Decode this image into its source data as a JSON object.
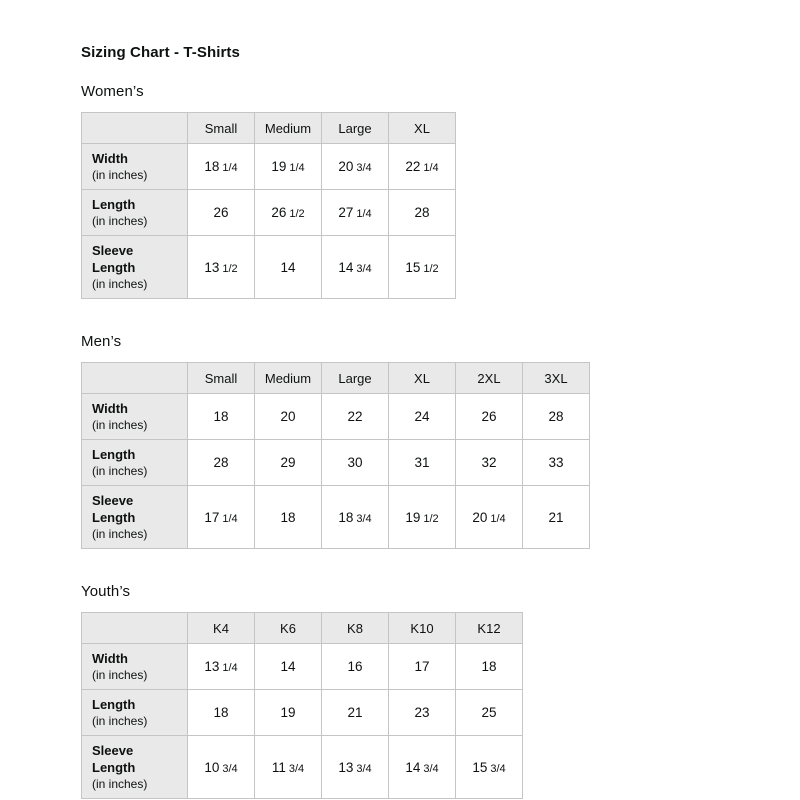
{
  "page": {
    "title": "Sizing Chart - T-Shirts"
  },
  "colors": {
    "background": "#ffffff",
    "header_bg": "#e9e9e9",
    "border": "#c5c5c5",
    "text": "#0f1111"
  },
  "chart_data": [
    {
      "type": "table",
      "section_title": "Women’s",
      "column_headers": [
        "Small",
        "Medium",
        "Large",
        "XL"
      ],
      "rows": [
        {
          "label": "Width",
          "note": "(in inches)",
          "values": [
            "18 1/4",
            "19 1/4",
            "20 3/4",
            "22 1/4"
          ]
        },
        {
          "label": "Length",
          "note": "(in inches)",
          "values": [
            "26",
            "26 1/2",
            "27 1/4",
            "28"
          ]
        },
        {
          "label": "Sleeve Length",
          "note": "(in inches)",
          "values": [
            "13 1/2",
            "14",
            "14 3/4",
            "15 1/2"
          ]
        }
      ]
    },
    {
      "type": "table",
      "section_title": "Men’s",
      "column_headers": [
        "Small",
        "Medium",
        "Large",
        "XL",
        "2XL",
        "3XL"
      ],
      "rows": [
        {
          "label": "Width",
          "note": "(in inches)",
          "values": [
            "18",
            "20",
            "22",
            "24",
            "26",
            "28"
          ]
        },
        {
          "label": "Length",
          "note": "(in inches)",
          "values": [
            "28",
            "29",
            "30",
            "31",
            "32",
            "33"
          ]
        },
        {
          "label": "Sleeve Length",
          "note": "(in inches)",
          "values": [
            "17 1/4",
            "18",
            "18 3/4",
            "19 1/2",
            "20 1/4",
            "21"
          ]
        }
      ]
    },
    {
      "type": "table",
      "section_title": "Youth’s",
      "column_headers": [
        "K4",
        "K6",
        "K8",
        "K10",
        "K12"
      ],
      "rows": [
        {
          "label": "Width",
          "note": "(in inches)",
          "values": [
            "13 1/4",
            "14",
            "16",
            "17",
            "18"
          ]
        },
        {
          "label": "Length",
          "note": "(in inches)",
          "values": [
            "18",
            "19",
            "21",
            "23",
            "25"
          ]
        },
        {
          "label": "Sleeve Length",
          "note": "(in inches)",
          "values": [
            "10 3/4",
            "11 3/4",
            "13 3/4",
            "14 3/4",
            "15 3/4"
          ]
        }
      ]
    }
  ]
}
